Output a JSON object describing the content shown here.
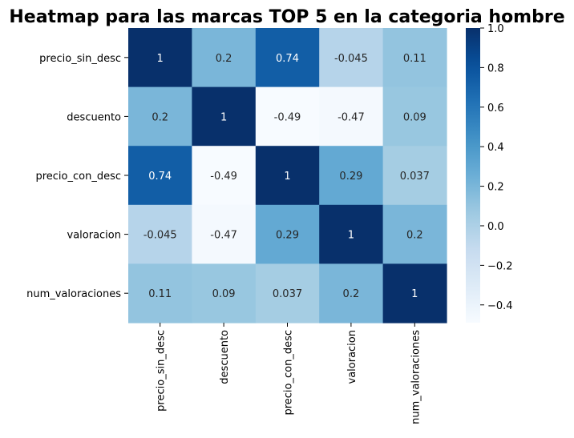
{
  "chart_data": {
    "type": "heatmap",
    "title": "Heatmap para las marcas TOP 5 en la categoria hombre",
    "rows": [
      "precio_sin_desc",
      "descuento",
      "precio_con_desc",
      "valoracion",
      "num_valoraciones"
    ],
    "columns": [
      "precio_sin_desc",
      "descuento",
      "precio_con_desc",
      "valoracion",
      "num_valoraciones"
    ],
    "values": [
      [
        1,
        0.2,
        0.74,
        -0.045,
        0.11
      ],
      [
        0.2,
        1,
        -0.49,
        -0.47,
        0.09
      ],
      [
        0.74,
        -0.49,
        1,
        0.29,
        0.037
      ],
      [
        -0.045,
        -0.47,
        0.29,
        1,
        0.2
      ],
      [
        0.11,
        0.09,
        0.037,
        0.2,
        1
      ]
    ],
    "labels": [
      [
        "1",
        "0.2",
        "0.74",
        "-0.045",
        "0.11"
      ],
      [
        "0.2",
        "1",
        "-0.49",
        "-0.47",
        "0.09"
      ],
      [
        "0.74",
        "-0.49",
        "1",
        "0.29",
        "0.037"
      ],
      [
        "-0.045",
        "-0.47",
        "0.29",
        "1",
        "0.2"
      ],
      [
        "0.11",
        "0.09",
        "0.037",
        "0.2",
        "1"
      ]
    ],
    "colormap": "Blues",
    "vmin": -0.49,
    "vmax": 1,
    "colorbar_ticks": [
      1.0,
      0.8,
      0.6,
      0.4,
      0.2,
      0.0,
      -0.2,
      -0.4
    ],
    "colorbar_tick_labels": [
      "1.0",
      "0.8",
      "0.6",
      "0.4",
      "0.2",
      "0.0",
      "−0.2",
      "−0.4"
    ],
    "colorbar_position": "right"
  }
}
